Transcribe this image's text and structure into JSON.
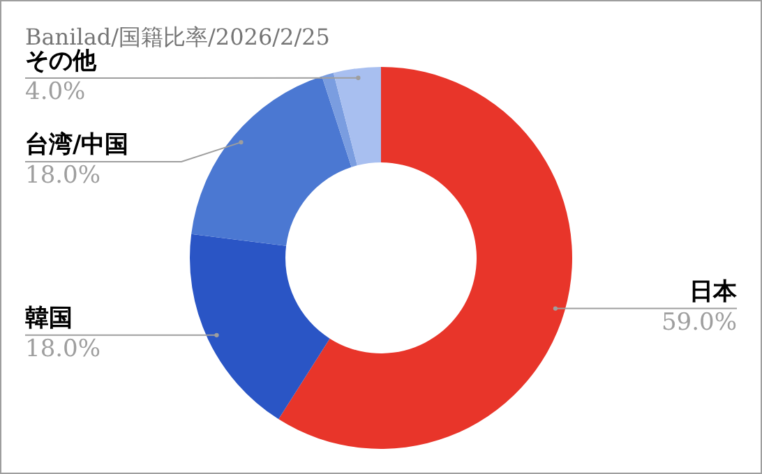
{
  "chart_data": {
    "type": "donut",
    "title": "Banilad/国籍比率/2026/2/25",
    "categories": [
      "日本",
      "韓国",
      "台湾/中国",
      null,
      "その他"
    ],
    "values": [
      59,
      18,
      18,
      1,
      4
    ],
    "colors": [
      "#e8352a",
      "#2a55c5",
      "#4b78d2",
      "#7a9de0",
      "#a8bff0"
    ],
    "value_labels": [
      "59.0%",
      "18.0%",
      "18.0%",
      null,
      "4.0%"
    ]
  }
}
